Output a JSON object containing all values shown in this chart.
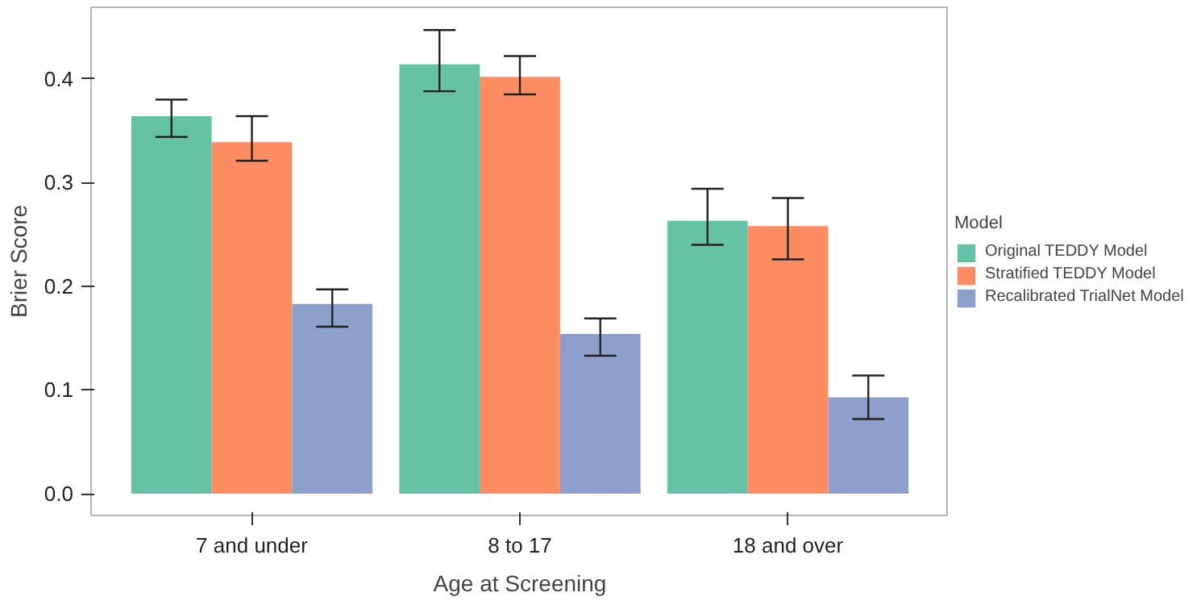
{
  "chart_data": {
    "type": "bar",
    "xlabel": "Age at Screening",
    "ylabel": "Brier Score",
    "legend_title": "Model",
    "legend": "right",
    "grid": false,
    "categories": [
      "7 and under",
      "8 to 17",
      "18 and over"
    ],
    "ylim": [
      -0.021,
      0.469
    ],
    "yticks": [
      {
        "value": 0,
        "label": "0.0"
      },
      0.1,
      0.2,
      0.3,
      0.4
    ],
    "series": [
      {
        "name": "Original TEDDY Model",
        "color": "#66c2a5",
        "values": [
          0.364,
          0.414,
          0.263
        ],
        "errors": [
          [
            0.344,
            0.38
          ],
          [
            0.388,
            0.447
          ],
          [
            0.24,
            0.294
          ]
        ]
      },
      {
        "name": "Stratified TEDDY Model",
        "color": "#fc8d62",
        "values": [
          0.339,
          0.402,
          0.258
        ],
        "errors": [
          [
            0.321,
            0.364
          ],
          [
            0.385,
            0.422
          ],
          [
            0.226,
            0.285
          ]
        ]
      },
      {
        "name": "Recalibrated TrialNet Model",
        "color": "#8da0cb",
        "values": [
          0.183,
          0.154,
          0.093
        ],
        "errors": [
          [
            0.161,
            0.197
          ],
          [
            0.133,
            0.169
          ],
          [
            0.072,
            0.114
          ]
        ]
      }
    ]
  }
}
